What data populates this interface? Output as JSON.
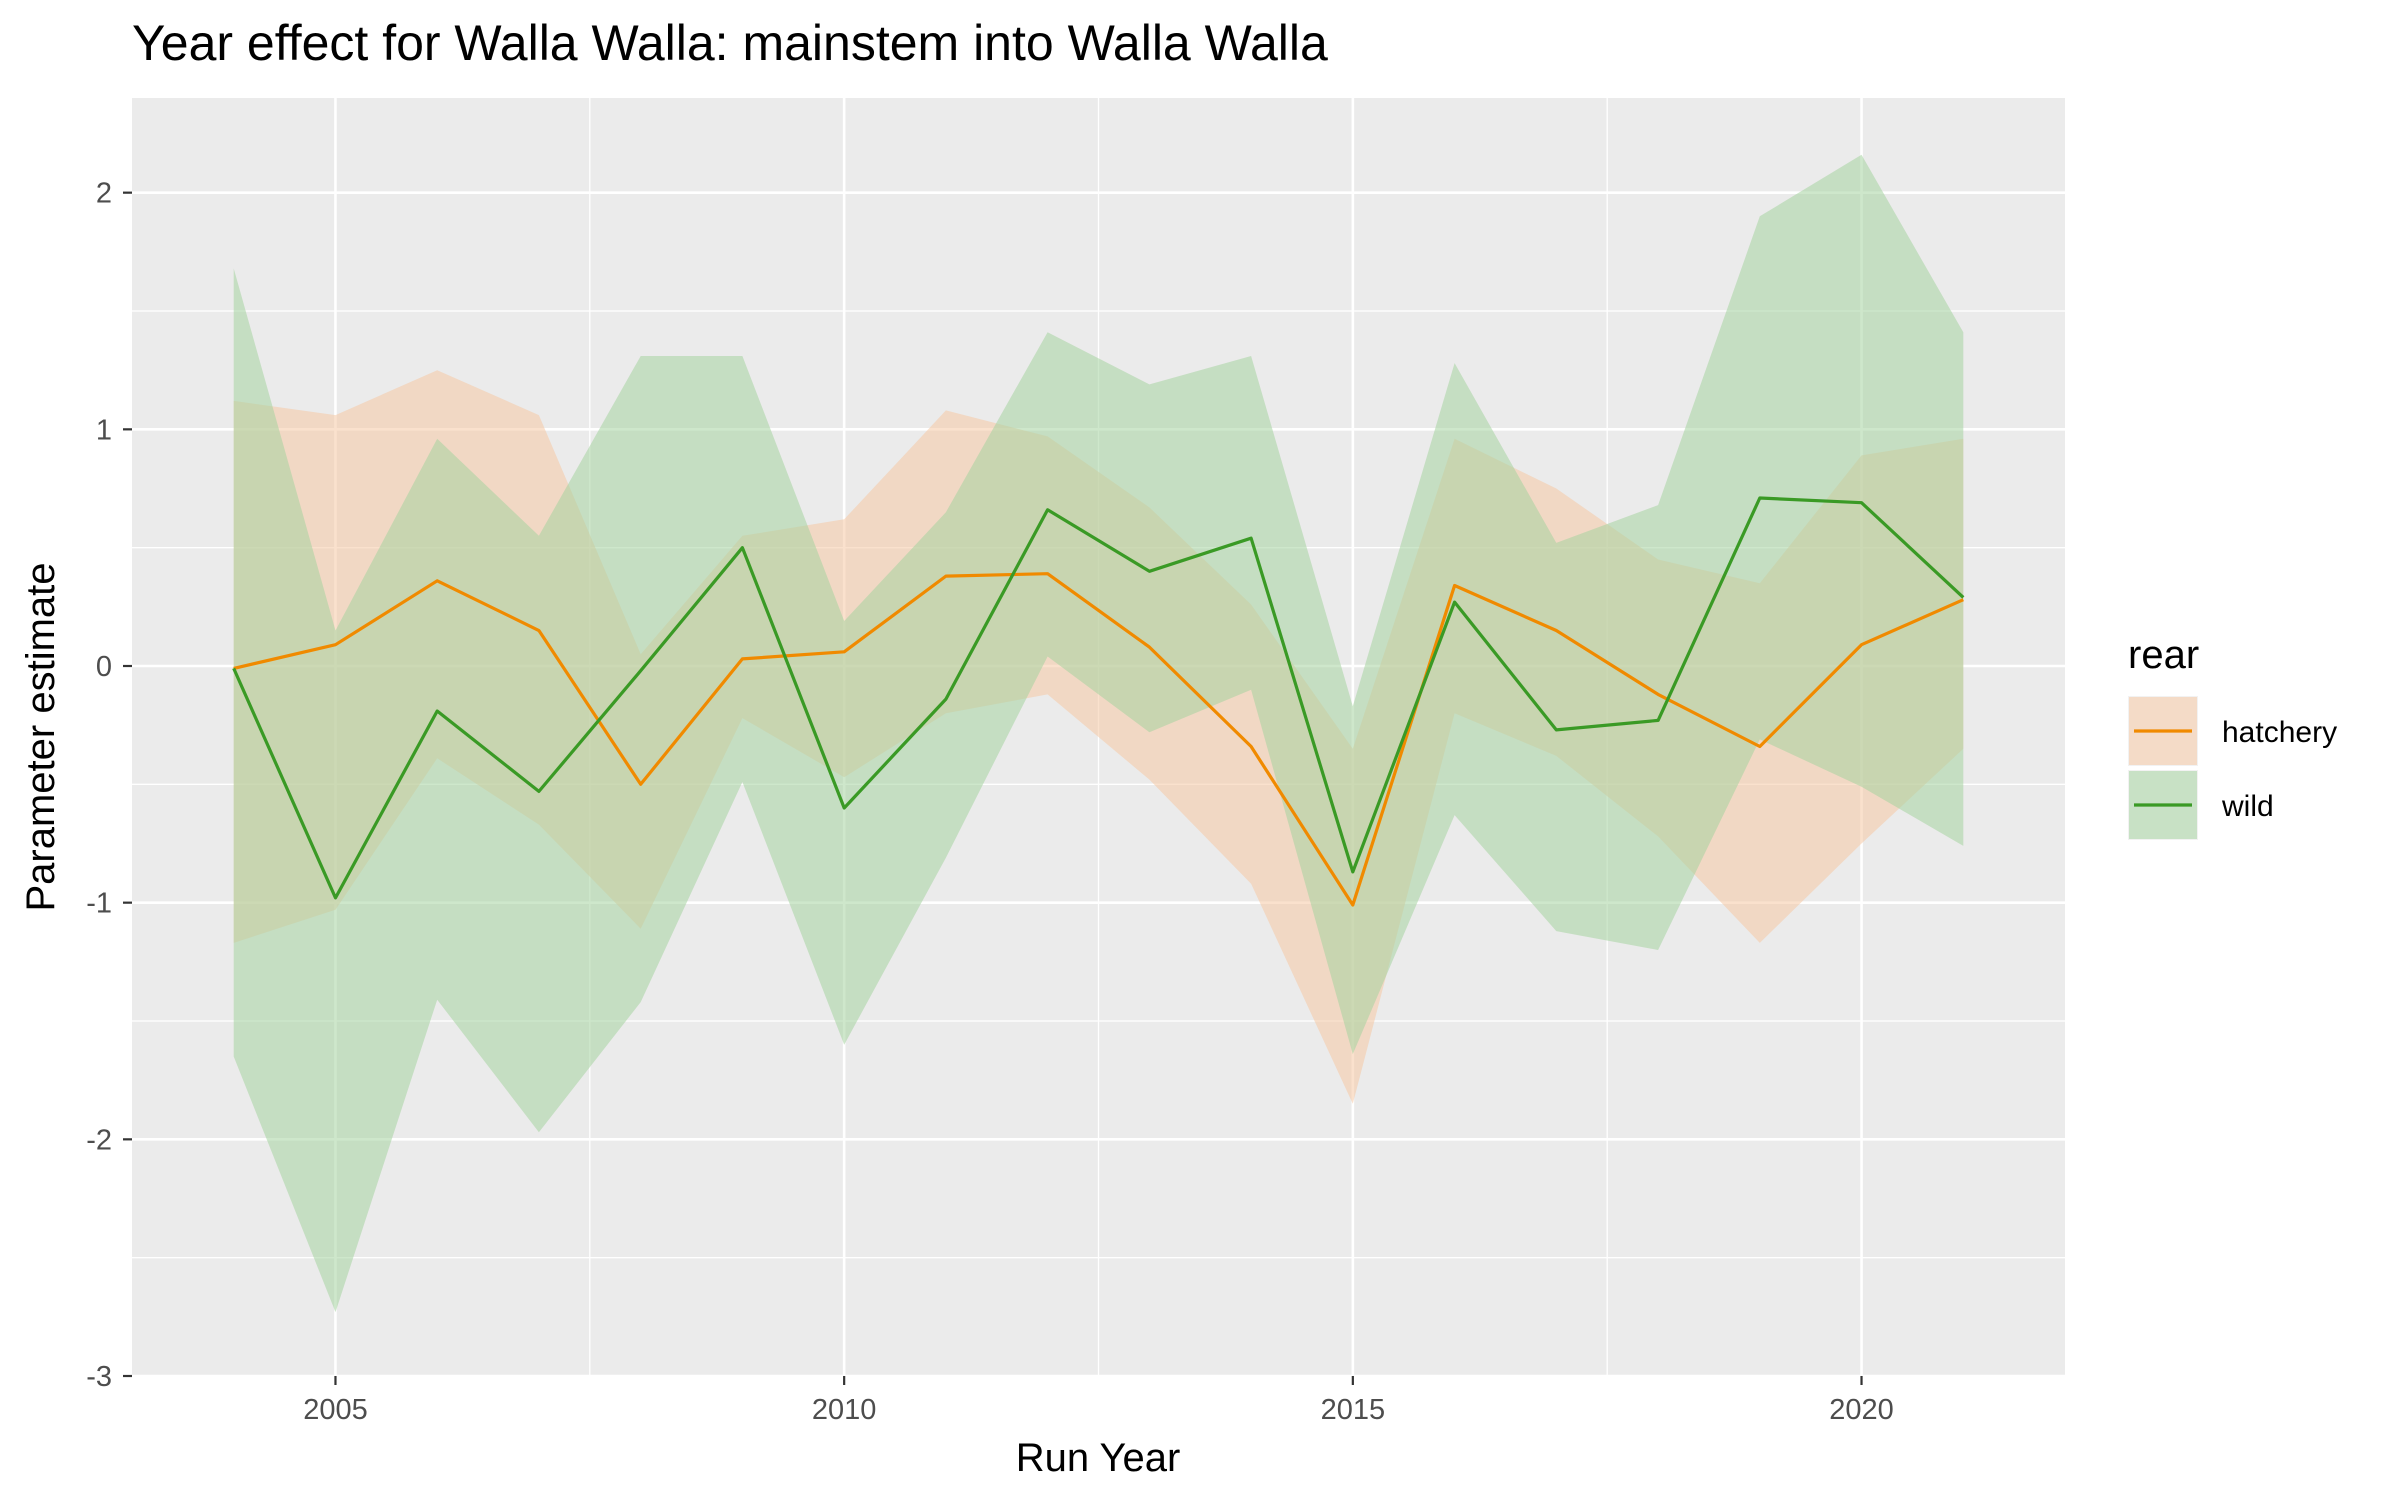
{
  "chart_data": {
    "type": "line",
    "title": "Year effect for Walla Walla: mainstem into Walla Walla",
    "xlabel": "Run Year",
    "ylabel": "Parameter estimate",
    "xlim": [
      2003,
      2022
    ],
    "ylim": [
      -3,
      2.4
    ],
    "x_ticks": [
      2005,
      2010,
      2015,
      2020
    ],
    "x_tick_labels": [
      "2005",
      "2010",
      "2015",
      "2020"
    ],
    "y_ticks": [
      -3,
      -2,
      -1,
      0,
      1,
      2
    ],
    "y_tick_labels": [
      "-3",
      "-2",
      "-1",
      "0",
      "1",
      "2"
    ],
    "x": [
      2004,
      2005,
      2006,
      2007,
      2008,
      2009,
      2010,
      2011,
      2012,
      2013,
      2014,
      2015,
      2016,
      2017,
      2018,
      2019,
      2020,
      2021
    ],
    "grid": true,
    "legend": {
      "title": "rear",
      "position": "right"
    },
    "series": [
      {
        "name": "hatchery",
        "color": "#f08a00",
        "fill_color": "#f6c9a4",
        "values": [
          -0.01,
          0.09,
          0.36,
          0.15,
          -0.5,
          0.03,
          0.06,
          0.38,
          0.39,
          0.08,
          -0.34,
          -1.01,
          0.34,
          0.15,
          -0.12,
          -0.34,
          0.09,
          0.28
        ],
        "lower": [
          -1.17,
          -1.03,
          -0.39,
          -0.67,
          -1.11,
          -0.22,
          -0.47,
          -0.2,
          -0.12,
          -0.48,
          -0.92,
          -1.85,
          -0.2,
          -0.38,
          -0.72,
          -1.17,
          -0.75,
          -0.35
        ],
        "upper": [
          1.12,
          1.06,
          1.25,
          1.06,
          0.05,
          0.55,
          0.62,
          1.08,
          0.97,
          0.67,
          0.26,
          -0.35,
          0.96,
          0.75,
          0.45,
          0.35,
          0.89,
          0.96
        ]
      },
      {
        "name": "wild",
        "color": "#3a9a25",
        "fill_color": "#a6d4a0",
        "values": [
          -0.01,
          -0.98,
          -0.19,
          -0.53,
          -0.02,
          0.5,
          -0.6,
          -0.14,
          0.66,
          0.4,
          0.54,
          -0.87,
          0.27,
          -0.27,
          -0.23,
          0.71,
          0.69,
          0.29
        ],
        "lower": [
          -1.65,
          -2.73,
          -1.41,
          -1.97,
          -1.42,
          -0.49,
          -1.6,
          -0.81,
          0.04,
          -0.28,
          -0.1,
          -1.64,
          -0.63,
          -1.12,
          -1.2,
          -0.31,
          -0.51,
          -0.76
        ],
        "upper": [
          1.68,
          0.15,
          0.96,
          0.55,
          1.31,
          1.31,
          0.19,
          0.65,
          1.41,
          1.19,
          1.31,
          -0.17,
          1.28,
          0.52,
          0.68,
          1.9,
          2.16,
          1.41
        ]
      }
    ]
  }
}
